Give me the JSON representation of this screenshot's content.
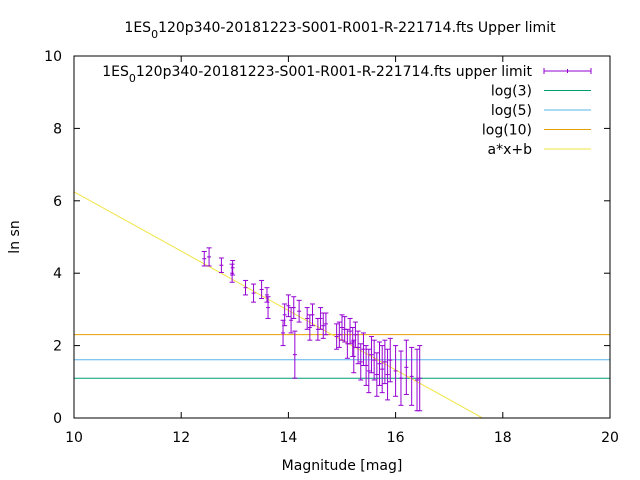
{
  "chart_data": {
    "type": "scatter",
    "title": "1ES_0120p340-20181223-S001-R001-R-221714.fts Upper limit",
    "title_parts": {
      "pre": "1ES",
      "sub": "0",
      "post": "120p340-20181223-S001-R001-R-221714.fts Upper limit"
    },
    "xlabel": "Magnitude [mag]",
    "ylabel": "ln sn",
    "xlim": [
      10,
      20
    ],
    "ylim": [
      0,
      10
    ],
    "xticks": [
      "10",
      "12",
      "14",
      "16",
      "18",
      "20"
    ],
    "yticks": [
      "0",
      "2",
      "4",
      "6",
      "8",
      "10"
    ],
    "grid": false,
    "legend_position": "top-right",
    "colors": {
      "data": "#9400d3",
      "log3": "#009e73",
      "log5": "#56b4e9",
      "log10": "#e69f00",
      "fit": "#f0e442"
    },
    "series": [
      {
        "name": "1ES_0120p340-20181223-S001-R001-R-221714.fts upper limit",
        "label_parts": {
          "pre": "1ES",
          "sub": "0",
          "post": "120p340-20181223-S001-R001-R-221714.fts upper limit"
        },
        "kind": "errorbars",
        "points": [
          {
            "x": 12.43,
            "y": 4.4,
            "err": 0.2
          },
          {
            "x": 12.52,
            "y": 4.45,
            "err": 0.25
          },
          {
            "x": 12.75,
            "y": 4.22,
            "err": 0.2
          },
          {
            "x": 12.95,
            "y": 4.0,
            "err": 0.25
          },
          {
            "x": 12.96,
            "y": 4.15,
            "err": 0.2
          },
          {
            "x": 13.2,
            "y": 3.6,
            "err": 0.2
          },
          {
            "x": 13.35,
            "y": 3.45,
            "err": 0.25
          },
          {
            "x": 13.5,
            "y": 3.55,
            "err": 0.25
          },
          {
            "x": 13.6,
            "y": 3.4,
            "err": 0.2
          },
          {
            "x": 13.62,
            "y": 3.05,
            "err": 0.3
          },
          {
            "x": 13.9,
            "y": 2.35,
            "err": 0.35
          },
          {
            "x": 13.93,
            "y": 2.85,
            "err": 0.3
          },
          {
            "x": 14.0,
            "y": 3.1,
            "err": 0.3
          },
          {
            "x": 14.05,
            "y": 2.7,
            "err": 0.35
          },
          {
            "x": 14.1,
            "y": 3.05,
            "err": 0.3
          },
          {
            "x": 14.12,
            "y": 1.75,
            "err": 0.65
          },
          {
            "x": 14.2,
            "y": 2.95,
            "err": 0.3
          },
          {
            "x": 14.35,
            "y": 2.75,
            "err": 0.3
          },
          {
            "x": 14.4,
            "y": 2.5,
            "err": 0.35
          },
          {
            "x": 14.45,
            "y": 2.85,
            "err": 0.3
          },
          {
            "x": 14.55,
            "y": 2.45,
            "err": 0.3
          },
          {
            "x": 14.6,
            "y": 2.75,
            "err": 0.3
          },
          {
            "x": 14.65,
            "y": 2.55,
            "err": 0.35
          },
          {
            "x": 14.7,
            "y": 2.6,
            "err": 0.3
          },
          {
            "x": 14.9,
            "y": 2.25,
            "err": 0.35
          },
          {
            "x": 14.95,
            "y": 2.3,
            "err": 0.35
          },
          {
            "x": 15.0,
            "y": 2.5,
            "err": 0.35
          },
          {
            "x": 15.05,
            "y": 2.45,
            "err": 0.35
          },
          {
            "x": 15.1,
            "y": 2.05,
            "err": 0.4
          },
          {
            "x": 15.15,
            "y": 2.4,
            "err": 0.35
          },
          {
            "x": 15.2,
            "y": 2.1,
            "err": 0.4
          },
          {
            "x": 15.22,
            "y": 1.7,
            "err": 0.45
          },
          {
            "x": 15.25,
            "y": 2.3,
            "err": 0.35
          },
          {
            "x": 15.3,
            "y": 1.95,
            "err": 0.45
          },
          {
            "x": 15.35,
            "y": 1.55,
            "err": 0.5
          },
          {
            "x": 15.4,
            "y": 1.9,
            "err": 0.45
          },
          {
            "x": 15.45,
            "y": 1.45,
            "err": 0.55
          },
          {
            "x": 15.5,
            "y": 1.3,
            "err": 0.6
          },
          {
            "x": 15.55,
            "y": 1.75,
            "err": 0.5
          },
          {
            "x": 15.6,
            "y": 1.6,
            "err": 0.55
          },
          {
            "x": 15.65,
            "y": 1.2,
            "err": 0.6
          },
          {
            "x": 15.7,
            "y": 1.5,
            "err": 0.6
          },
          {
            "x": 15.75,
            "y": 1.35,
            "err": 0.65
          },
          {
            "x": 15.8,
            "y": 1.55,
            "err": 0.6
          },
          {
            "x": 15.85,
            "y": 1.2,
            "err": 0.7
          },
          {
            "x": 15.9,
            "y": 1.6,
            "err": 0.6
          },
          {
            "x": 16.0,
            "y": 1.3,
            "err": 0.7
          },
          {
            "x": 16.1,
            "y": 1.1,
            "err": 0.75
          },
          {
            "x": 16.2,
            "y": 1.4,
            "err": 0.75
          },
          {
            "x": 16.3,
            "y": 1.15,
            "err": 0.8
          },
          {
            "x": 16.4,
            "y": 1.05,
            "err": 0.85
          },
          {
            "x": 16.45,
            "y": 1.1,
            "err": 0.9
          }
        ]
      },
      {
        "name": "log(3)",
        "kind": "hline",
        "y": 1.0986
      },
      {
        "name": "log(5)",
        "kind": "hline",
        "y": 1.6094
      },
      {
        "name": "log(10)",
        "kind": "hline",
        "y": 2.3026
      },
      {
        "name": "a*x+b",
        "kind": "line",
        "slope": -0.82,
        "intercept": 14.45
      }
    ]
  }
}
